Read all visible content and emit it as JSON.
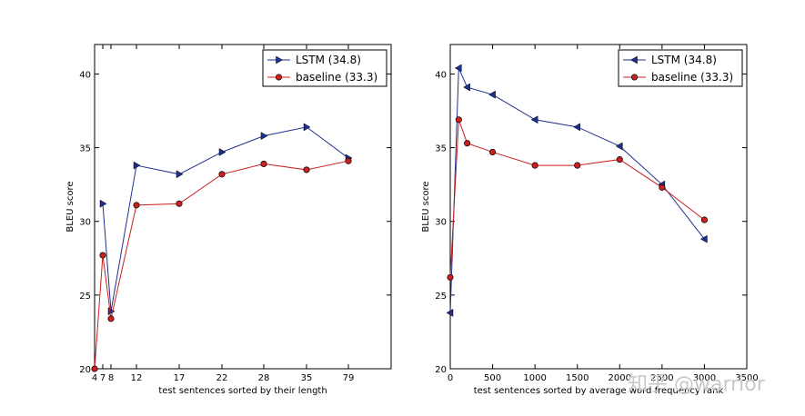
{
  "chart_data": [
    {
      "type": "line",
      "xlabel": "test sentences sorted by their length",
      "ylabel": "BLEU score",
      "xtick_labels": [
        "4",
        "7",
        "8",
        "12",
        "17",
        "22",
        "28",
        "35",
        "79"
      ],
      "ylim": [
        20,
        42
      ],
      "yticks": [
        20,
        25,
        30,
        35,
        40
      ],
      "legend_position": "top-right",
      "series": [
        {
          "name": "LSTM  (34.8)",
          "marker": "right-triangle",
          "color": "#1f2f8f",
          "values": [
            null,
            31.2,
            23.9,
            33.8,
            33.2,
            34.7,
            35.8,
            36.4,
            34.3
          ]
        },
        {
          "name": "baseline (33.3)",
          "marker": "circle",
          "color": "#cc1f1f",
          "values": [
            20,
            27.7,
            23.4,
            31.1,
            31.2,
            33.2,
            33.9,
            33.5,
            34.1
          ]
        }
      ]
    },
    {
      "type": "line",
      "xlabel": "test sentences sorted by average word frequency rank",
      "ylabel": "BLEU score",
      "xlim": [
        0,
        3500
      ],
      "ylim": [
        20,
        42
      ],
      "xticks": [
        0,
        500,
        1000,
        1500,
        2000,
        2500,
        3000,
        3500
      ],
      "yticks": [
        20,
        25,
        30,
        35,
        40
      ],
      "legend_position": "top-right",
      "series": [
        {
          "name": "LSTM  (34.8)",
          "marker": "left-triangle",
          "color": "#1f2f8f",
          "x": [
            0,
            100,
            200,
            500,
            1000,
            1500,
            2000,
            2500,
            3000
          ],
          "y": [
            23.8,
            40.4,
            39.1,
            38.6,
            36.9,
            36.4,
            35.1,
            32.5,
            28.8
          ]
        },
        {
          "name": "baseline (33.3)",
          "marker": "circle",
          "color": "#cc1f1f",
          "x": [
            0,
            100,
            200,
            500,
            1000,
            1500,
            2000,
            2500,
            3000
          ],
          "y": [
            26.2,
            36.9,
            35.3,
            34.7,
            33.8,
            33.8,
            34.2,
            32.3,
            30.1
          ]
        }
      ]
    }
  ],
  "watermark": "知乎 @warrior"
}
